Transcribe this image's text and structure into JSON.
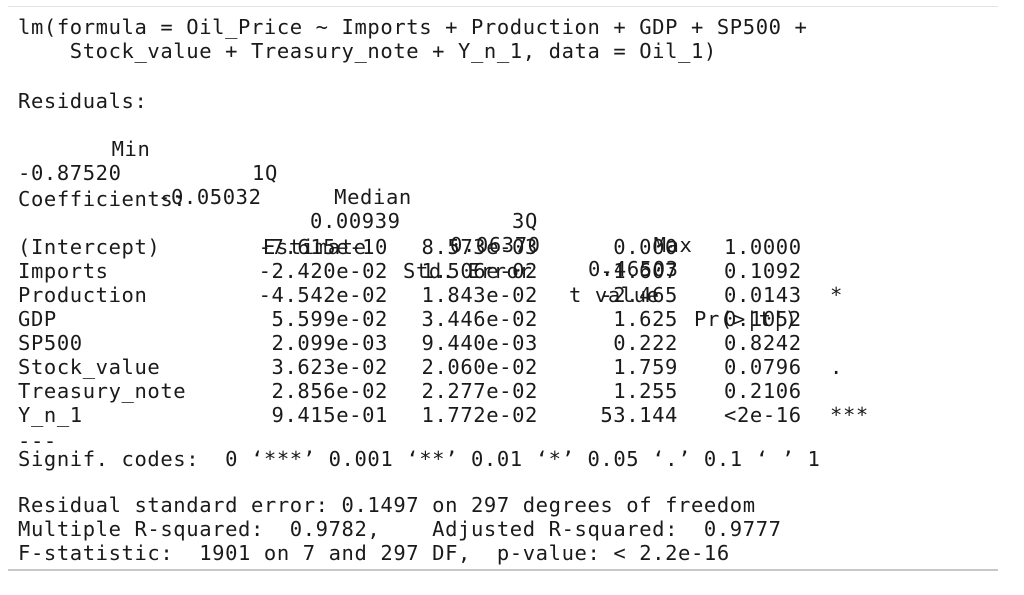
{
  "call": {
    "line1": "lm(formula = Oil_Price ~ Imports + Production + GDP + SP500 +",
    "line2": "    Stock_value + Treasury_note + Y_n_1, data = Oil_1)"
  },
  "residuals": {
    "header": "Residuals:",
    "labels": [
      "Min",
      "1Q",
      "Median",
      "3Q",
      "Max"
    ],
    "values": [
      "-0.87520",
      "-0.05032",
      "0.00939",
      "0.06370",
      "0.46503"
    ]
  },
  "coefficients": {
    "header": "Coefficients:",
    "columns": [
      "Estimate",
      "Std. Error",
      "t value",
      "Pr(>|t|)"
    ],
    "rows": [
      {
        "name": "(Intercept)",
        "estimate": "-7.615e-10",
        "std_error": "8.573e-03",
        "t_value": "0.000",
        "p_value": "1.0000",
        "signif": ""
      },
      {
        "name": "Imports",
        "estimate": "-2.420e-02",
        "std_error": "1.506e-02",
        "t_value": "-1.607",
        "p_value": "0.1092",
        "signif": ""
      },
      {
        "name": "Production",
        "estimate": "-4.542e-02",
        "std_error": "1.843e-02",
        "t_value": "-2.465",
        "p_value": "0.0143",
        "signif": "*"
      },
      {
        "name": "GDP",
        "estimate": "5.599e-02",
        "std_error": "3.446e-02",
        "t_value": "1.625",
        "p_value": "0.1052",
        "signif": ""
      },
      {
        "name": "SP500",
        "estimate": "2.099e-03",
        "std_error": "9.440e-03",
        "t_value": "0.222",
        "p_value": "0.8242",
        "signif": ""
      },
      {
        "name": "Stock_value",
        "estimate": "3.623e-02",
        "std_error": "2.060e-02",
        "t_value": "1.759",
        "p_value": "0.0796",
        "signif": "."
      },
      {
        "name": "Treasury_note",
        "estimate": "2.856e-02",
        "std_error": "2.277e-02",
        "t_value": "1.255",
        "p_value": "0.2106",
        "signif": ""
      },
      {
        "name": "Y_n_1",
        "estimate": "9.415e-01",
        "std_error": "1.772e-02",
        "t_value": "53.144",
        "p_value": "<2e-16",
        "signif": "***"
      }
    ]
  },
  "separator": "---",
  "signif_codes": "Signif. codes:  0 ‘***’ 0.001 ‘**’ 0.01 ‘*’ 0.05 ‘.’ 0.1 ‘ ’ 1",
  "summary": {
    "line1": "Residual standard error: 0.1497 on 297 degrees of freedom",
    "line2": "Multiple R-squared:  0.9782,    Adjusted R-squared:  0.9777",
    "line3": "F-statistic:  1901 on 7 and 297 DF,  p-value: < 2.2e-16"
  }
}
